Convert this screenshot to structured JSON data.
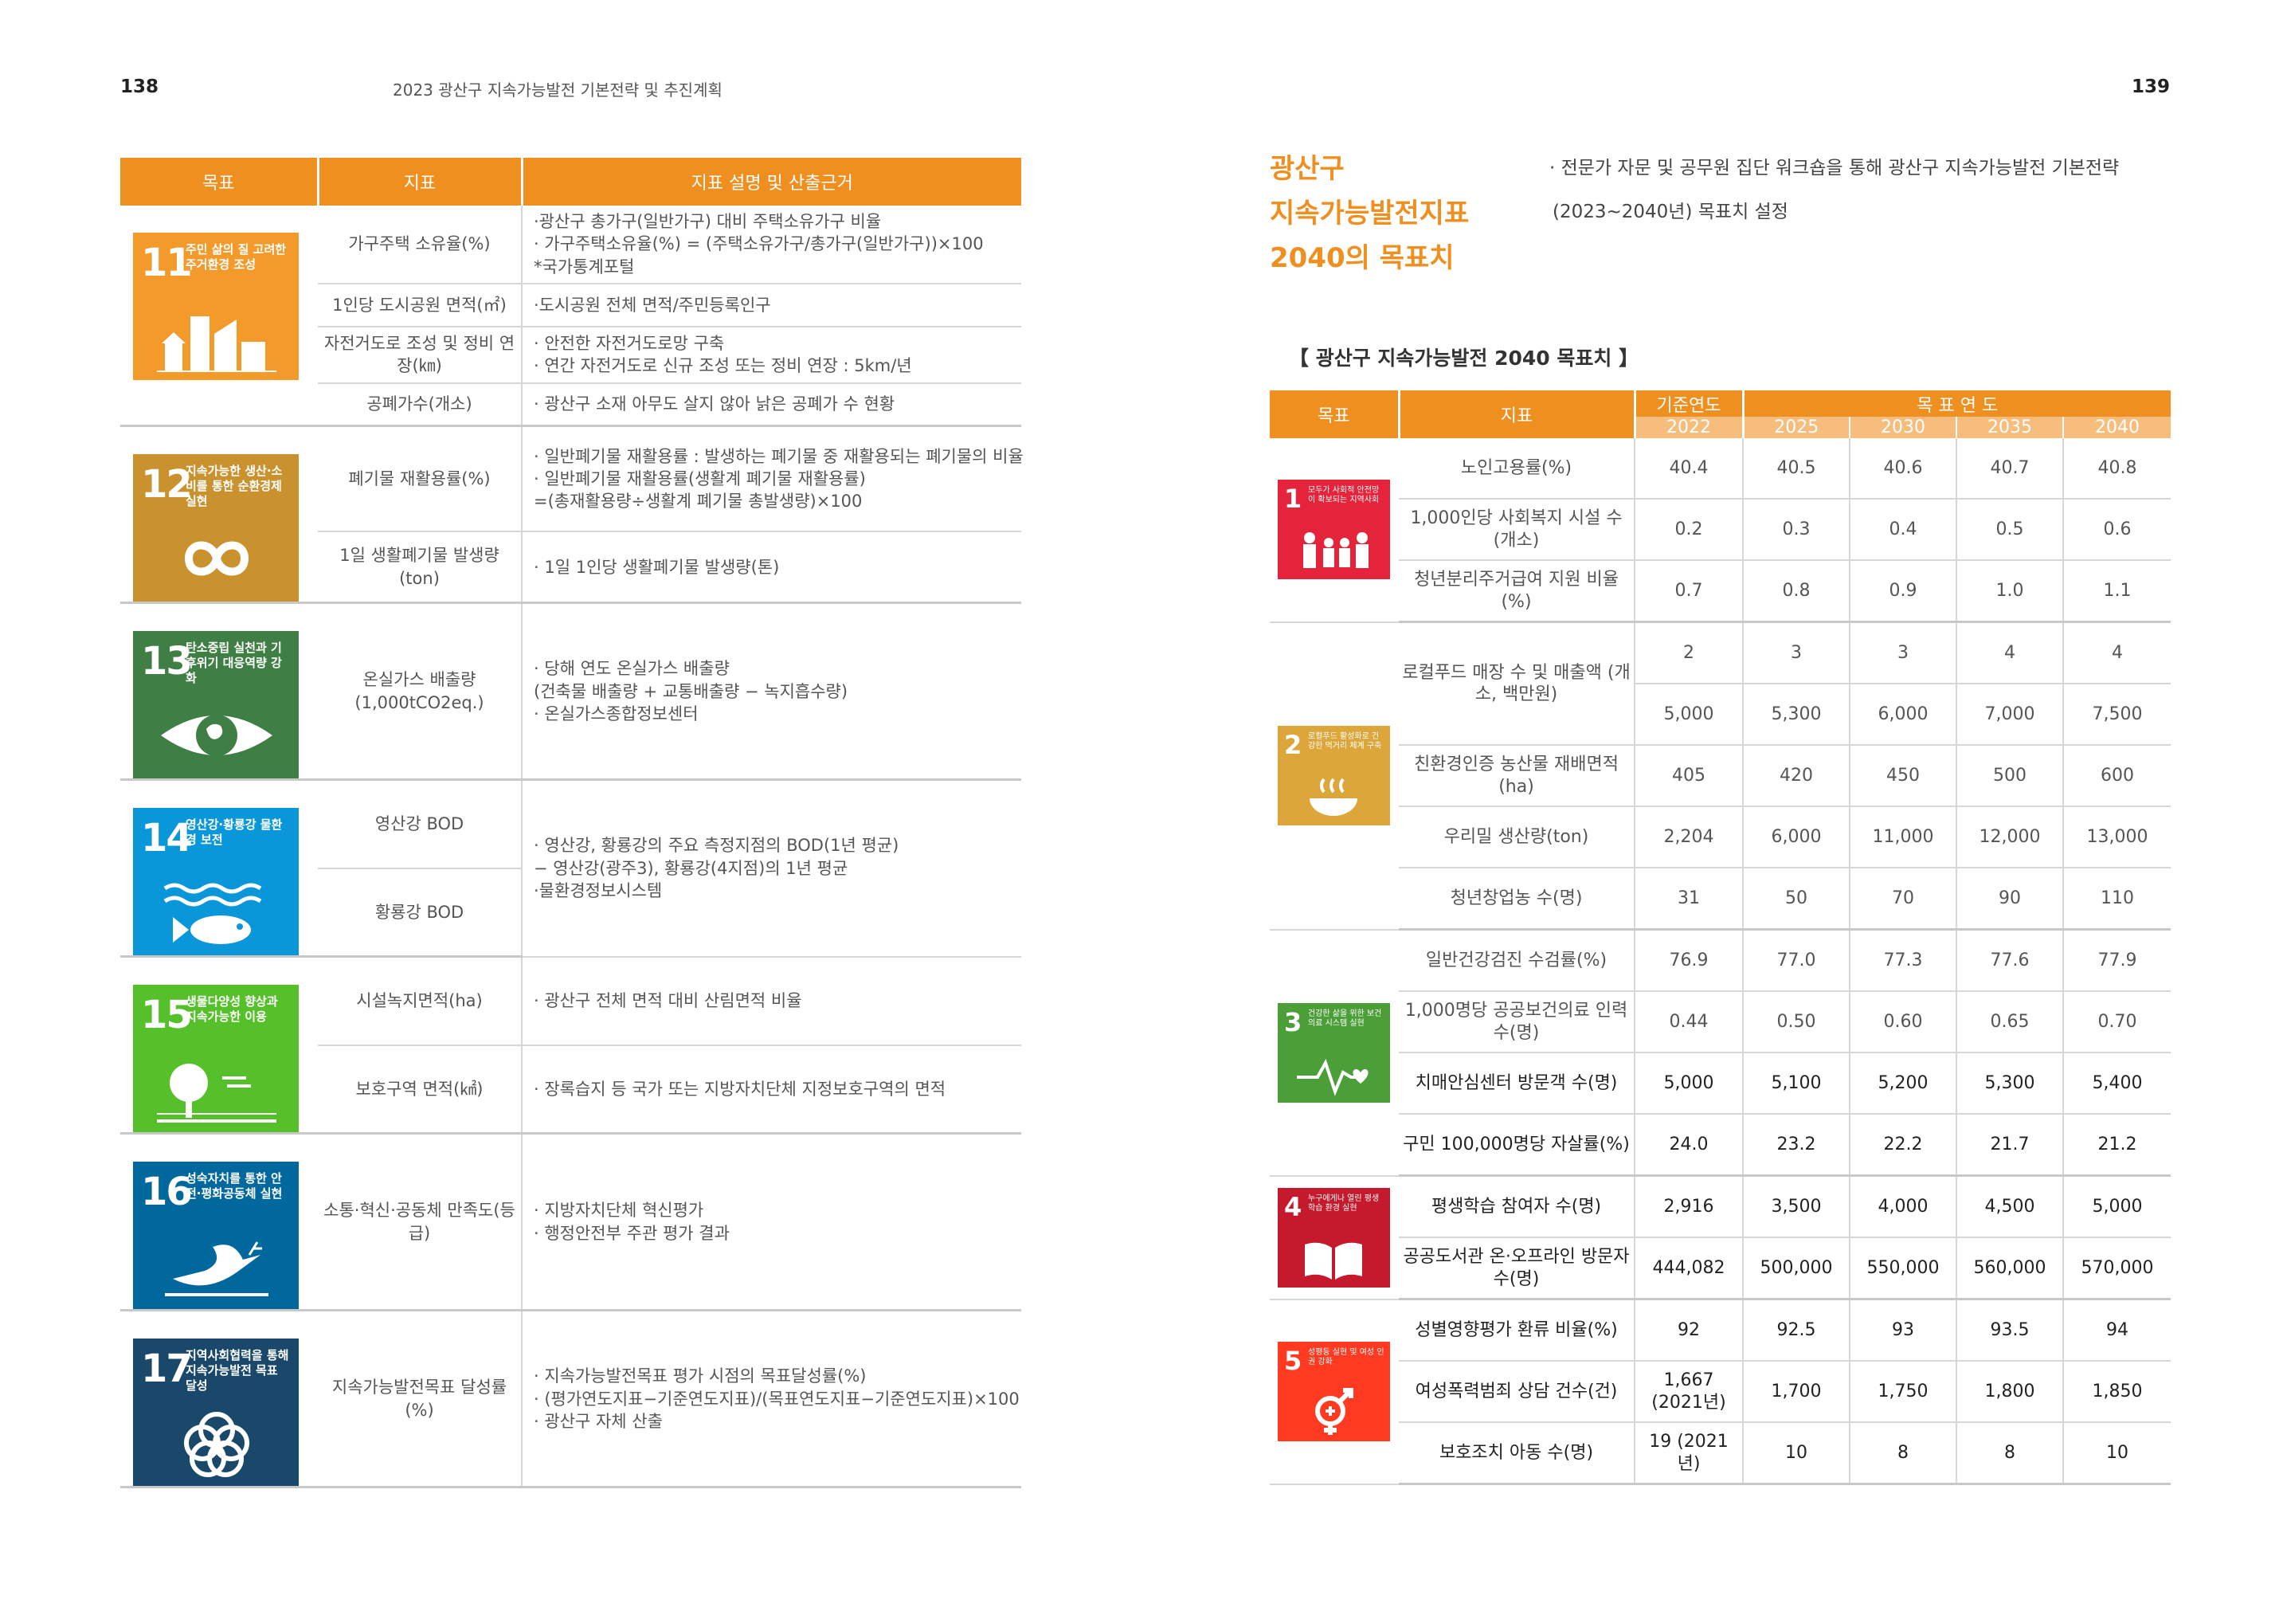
{
  "left_page": {
    "page_number": "138",
    "running_head": "2023 광산구 지속가능발전 기본전략 및 추진계획",
    "table_headers": [
      "목표",
      "지표",
      "지표 설명 및 산출근거"
    ],
    "goals": [
      {
        "number": "11",
        "title": "주민 삶의 질 고려한 주거환경 조성",
        "color": "#f39a2b",
        "icon": "city-icon",
        "rows": [
          {
            "indicator": "가구주택 소유율(%)",
            "desc": [
              "·광산구 총가구(일반가구) 대비 주택소유가구 비율",
              "· 가구주택소유율(%) = (주택소유가구/총가구(일반가구))×100",
              "*국가통계포털"
            ]
          },
          {
            "indicator": "1인당 도시공원 면적(㎡)",
            "desc": [
              "·도시공원 전체 면적/주민등록인구"
            ]
          },
          {
            "indicator": "자전거도로 조성 및 정비 연장(㎞)",
            "desc": [
              "· 안전한 자전거도로망 구축",
              "· 연간 자전거도로 신규 조성 또는 정비 연장 : 5km/년"
            ]
          },
          {
            "indicator": "공폐가수(개소)",
            "desc": [
              "· 광산구 소재 아무도 살지 않아 낡은 공폐가 수 현황"
            ]
          }
        ]
      },
      {
        "number": "12",
        "title": "지속가능한 생산·소비를 통한 순환경제 실현",
        "color": "#c9922e",
        "icon": "infinity-icon",
        "rows": [
          {
            "indicator": "폐기물 재활용률(%)",
            "desc": [
              "· 일반폐기물 재활용률 : 발생하는 폐기물 중 재활용되는 폐기물의 비율",
              "· 일반폐기물 재활용률(생활계 폐기물 재활용률)",
              "=(총재활용량÷생활계 폐기물 총발생량)×100"
            ]
          },
          {
            "indicator": "1일 생활폐기물 발생량(ton)",
            "desc": [
              "· 1일 1인당 생활폐기물 발생량(톤)"
            ]
          }
        ]
      },
      {
        "number": "13",
        "title": "탄소중립 실천과 기후위기 대응역량 강화",
        "color": "#3f7e44",
        "icon": "eye-globe-icon",
        "rows": [
          {
            "indicator": "온실가스 배출량(1,000tCO2eq.)",
            "desc": [
              "· 당해 연도 온실가스 배출량",
              "(건축물 배출량 + 교통배출량 − 녹지흡수량)",
              "· 온실가스종합정보센터"
            ]
          }
        ]
      },
      {
        "number": "14",
        "title": "영산강·황룡강 물환경 보전",
        "color": "#0a97d9",
        "icon": "fish-icon",
        "rows": [
          {
            "indicator": "영산강 BOD",
            "desc": [
              "· 영산강, 황룡강의 주요 측정지점의 BOD(1년 평균)",
              "− 영산강(광주3), 황룡강(4지점)의 1년 평균",
              "·물환경정보시스템"
            ]
          },
          {
            "indicator": "황룡강 BOD",
            "desc": []
          }
        ]
      },
      {
        "number": "15",
        "title": "생물다양성 향상과 지속가능한 이용",
        "color": "#56c02b",
        "icon": "tree-icon",
        "rows": [
          {
            "indicator": "시설녹지면적(ha)",
            "desc": [
              "· 광산구 전체 면적 대비 산림면적 비율"
            ]
          },
          {
            "indicator": "보호구역 면적(㎢)",
            "desc": [
              "· 장록습지 등 국가 또는 지방자치단체 지정보호구역의 면적"
            ]
          }
        ]
      },
      {
        "number": "16",
        "title": "성숙자치를 통한 안전·평화공동체 실현",
        "color": "#00689d",
        "icon": "dove-icon",
        "rows": [
          {
            "indicator": "소통·혁신·공동체 만족도(등급)",
            "desc": [
              "· 지방자치단체 혁신평가",
              "· 행정안전부 주관 평가 결과"
            ]
          }
        ]
      },
      {
        "number": "17",
        "title": "지역사회협력을 통해 지속가능발전 목표 달성",
        "color": "#19486a",
        "icon": "flower-icon",
        "rows": [
          {
            "indicator": "지속가능발전목표 달성률(%)",
            "desc": [
              "· 지속가능발전목표 평가 시점의 목표달성률(%)",
              "· (평가연도지표−기준연도지표)/(목표연도지표−기준연도지표)×100",
              "· 광산구 자체 산출"
            ]
          }
        ]
      }
    ]
  },
  "right_page": {
    "page_number": "139",
    "title_lines": [
      "광산구",
      "지속가능발전지표",
      "2040의 목표치"
    ],
    "note_lines": [
      "· 전문가 자문 및 공무원 집단 워크숍을 통해 광산구 지속가능발전 기본전략",
      "(2023~2040년) 목표치 설정"
    ],
    "table_title": "【 광산구 지속가능발전 2040 목표치 】",
    "headers": {
      "goal": "목표",
      "indicator": "지표",
      "base": "기준연도",
      "target": "목 표 연 도"
    },
    "years": [
      "2022",
      "2025",
      "2030",
      "2035",
      "2040"
    ],
    "goals": [
      {
        "number": "1",
        "title": "모두가 사회적 안전망이 확보되는 지역사회",
        "color": "#e5243b",
        "icon": "family-icon",
        "rows": [
          {
            "indicator": "노인고용률(%)",
            "values": [
              "40.4",
              "40.5",
              "40.6",
              "40.7",
              "40.8"
            ]
          },
          {
            "indicator": "1,000인당 사회복지 시설 수(개소)",
            "values": [
              "0.2",
              "0.3",
              "0.4",
              "0.5",
              "0.6"
            ]
          },
          {
            "indicator": "청년분리주거급여 지원 비율(%)",
            "values": [
              "0.7",
              "0.8",
              "0.9",
              "1.0",
              "1.1"
            ]
          }
        ]
      },
      {
        "number": "2",
        "title": "로컬푸드 활성화로 건강한 먹거리 체계 구축",
        "color": "#dda63a",
        "icon": "bowl-icon",
        "rows": [
          {
            "indicator": "로컬푸드 매장 수 및 매출액 (개소, 백만원)",
            "values": [
              "2",
              "3",
              "3",
              "4",
              "4"
            ],
            "values2": [
              "5,000",
              "5,300",
              "6,000",
              "7,000",
              "7,500"
            ]
          },
          {
            "indicator": "친환경인증 농산물 재배면적(ha)",
            "values": [
              "405",
              "420",
              "450",
              "500",
              "600"
            ]
          },
          {
            "indicator": "우리밀 생산량(ton)",
            "values": [
              "2,204",
              "6,000",
              "11,000",
              "12,000",
              "13,000"
            ]
          },
          {
            "indicator": "청년창업농 수(명)",
            "values": [
              "31",
              "50",
              "70",
              "90",
              "110"
            ]
          }
        ]
      },
      {
        "number": "3",
        "title": "건강한 삶을 위한 보건의료 시스템 실현",
        "color": "#4c9f38",
        "icon": "heartbeat-icon",
        "rows": [
          {
            "indicator": "일반건강검진 수검률(%)",
            "values": [
              "76.9",
              "77.0",
              "77.3",
              "77.6",
              "77.9"
            ]
          },
          {
            "indicator": "1,000명당 공공보건의료 인력 수(명)",
            "values": [
              "0.44",
              "0.50",
              "0.60",
              "0.65",
              "0.70"
            ]
          },
          {
            "indicator": "치매안심센터 방문객 수(명)",
            "values": [
              "5,000",
              "5,100",
              "5,200",
              "5,300",
              "5,400"
            ],
            "dark": true
          },
          {
            "indicator": "구민 100,000명당 자살률(%)",
            "values": [
              "24.0",
              "23.2",
              "22.2",
              "21.7",
              "21.2"
            ],
            "dark": true
          }
        ]
      },
      {
        "number": "4",
        "title": "누구에게나 열린 평생학습 환경 실현",
        "color": "#c5192d",
        "icon": "book-icon",
        "rows": [
          {
            "indicator": "평생학습 참여자 수(명)",
            "values": [
              "2,916",
              "3,500",
              "4,000",
              "4,500",
              "5,000"
            ],
            "dark": true
          },
          {
            "indicator": "공공도서관 온·오프라인 방문자 수(명)",
            "values": [
              "444,082",
              "500,000",
              "550,000",
              "560,000",
              "570,000"
            ],
            "dark": true
          }
        ]
      },
      {
        "number": "5",
        "title": "성평등 실현 및 여성 인권 강화",
        "color": "#ff3a21",
        "icon": "gender-icon",
        "rows": [
          {
            "indicator": "성별영향평가 환류 비율(%)",
            "values": [
              "92",
              "92.5",
              "93",
              "93.5",
              "94"
            ],
            "dark": true
          },
          {
            "indicator": "여성폭력범죄 상담 건수(건)",
            "values": [
              "1,667 (2021년)",
              "1,700",
              "1,750",
              "1,800",
              "1,850"
            ],
            "dark": true
          },
          {
            "indicator": "보호조치 아동 수(명)",
            "values": [
              "19 (2021년)",
              "10",
              "8",
              "8",
              "10"
            ],
            "dark": true
          }
        ]
      }
    ]
  }
}
